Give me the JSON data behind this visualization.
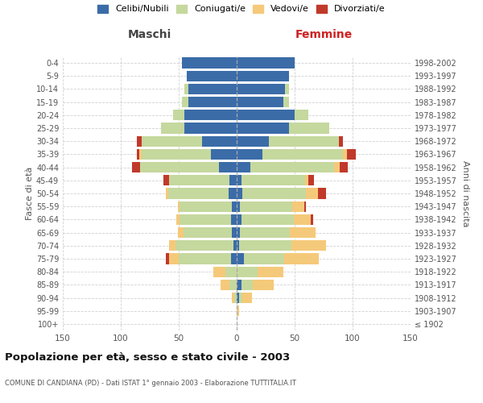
{
  "age_groups": [
    "100+",
    "95-99",
    "90-94",
    "85-89",
    "80-84",
    "75-79",
    "70-74",
    "65-69",
    "60-64",
    "55-59",
    "50-54",
    "45-49",
    "40-44",
    "35-39",
    "30-34",
    "25-29",
    "20-24",
    "15-19",
    "10-14",
    "5-9",
    "0-4"
  ],
  "birth_years": [
    "≤ 1902",
    "1903-1907",
    "1908-1912",
    "1913-1917",
    "1918-1922",
    "1923-1927",
    "1928-1932",
    "1933-1937",
    "1938-1942",
    "1943-1947",
    "1948-1952",
    "1953-1957",
    "1958-1962",
    "1963-1967",
    "1968-1972",
    "1973-1977",
    "1978-1982",
    "1983-1987",
    "1988-1992",
    "1993-1997",
    "1998-2002"
  ],
  "maschi": {
    "celibi": [
      0,
      0,
      0,
      0,
      0,
      5,
      3,
      4,
      5,
      4,
      7,
      6,
      15,
      22,
      30,
      45,
      45,
      42,
      42,
      43,
      47
    ],
    "coniugati": [
      0,
      0,
      2,
      6,
      10,
      45,
      50,
      42,
      44,
      45,
      52,
      52,
      68,
      60,
      52,
      20,
      10,
      5,
      3,
      0,
      0
    ],
    "vedovi": [
      0,
      0,
      2,
      8,
      10,
      8,
      5,
      5,
      3,
      2,
      2,
      0,
      0,
      2,
      0,
      0,
      0,
      0,
      0,
      0,
      0
    ],
    "divorziati": [
      0,
      0,
      0,
      0,
      0,
      3,
      0,
      0,
      0,
      0,
      0,
      5,
      7,
      2,
      4,
      0,
      0,
      0,
      0,
      0,
      0
    ]
  },
  "femmine": {
    "nubili": [
      0,
      0,
      2,
      4,
      0,
      6,
      2,
      3,
      4,
      3,
      5,
      4,
      12,
      22,
      28,
      45,
      50,
      40,
      42,
      45,
      50
    ],
    "coniugate": [
      0,
      0,
      3,
      10,
      18,
      35,
      45,
      43,
      45,
      45,
      55,
      55,
      72,
      70,
      60,
      35,
      12,
      5,
      3,
      0,
      0
    ],
    "vedove": [
      0,
      2,
      8,
      18,
      22,
      30,
      30,
      22,
      15,
      10,
      10,
      3,
      5,
      3,
      0,
      0,
      0,
      0,
      0,
      0,
      0
    ],
    "divorziate": [
      0,
      0,
      0,
      0,
      0,
      0,
      0,
      0,
      2,
      2,
      7,
      5,
      7,
      8,
      4,
      0,
      0,
      0,
      0,
      0,
      0
    ]
  },
  "colors": {
    "celibi": "#3b6ca8",
    "coniugati": "#c5d89e",
    "vedovi": "#f5c97a",
    "divorziati": "#c0392b"
  },
  "xlim": 150,
  "title": "Popolazione per età, sesso e stato civile - 2003",
  "subtitle": "COMUNE DI CANDIANA (PD) - Dati ISTAT 1° gennaio 2003 - Elaborazione TUTTITALIA.IT",
  "ylabel_left": "Fasce di età",
  "ylabel_right": "Anni di nascita",
  "xlabel_left": "Maschi",
  "xlabel_right": "Femmine"
}
